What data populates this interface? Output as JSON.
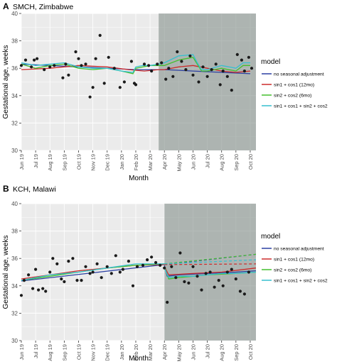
{
  "chart_data": [
    {
      "type": "scatter",
      "panel_letter": "A",
      "title": "SMCH, Zimbabwe",
      "xlabel": "Month",
      "ylabel": "Gestational age, weeks",
      "ylim": [
        30,
        40
      ],
      "yticks": [
        30,
        32,
        34,
        36,
        38,
        40
      ],
      "xlim": [
        0,
        16.4
      ],
      "xticks": [
        "Jun 19",
        "Jul 19",
        "Aug 19",
        "Sep 19",
        "Oct 19",
        "Nov 19",
        "Dec 19",
        "Jan 20",
        "Feb 20",
        "Mar 20",
        "Apr 20",
        "May 20",
        "Jun 20",
        "Jul 20",
        "Aug 20",
        "Sep 20",
        "Oct 20"
      ],
      "shaded_period": {
        "from": 9.6,
        "to": 16.4
      },
      "grid": true,
      "legend_position": "right",
      "points": {
        "x": [
          0.0,
          0.3,
          0.7,
          0.9,
          1.1,
          1.6,
          2.0,
          2.3,
          2.9,
          3.1,
          3.3,
          3.8,
          4.0,
          4.2,
          4.5,
          4.8,
          5.0,
          5.2,
          5.5,
          5.8,
          6.1,
          6.5,
          6.9,
          7.2,
          7.7,
          7.9,
          8.0,
          8.6,
          8.9,
          9.1,
          9.5,
          9.8,
          10.1,
          10.3,
          10.6,
          10.9,
          11.2,
          11.5,
          11.8,
          12.0,
          12.4,
          12.7,
          13.0,
          13.3,
          13.6,
          13.9,
          14.1,
          14.4,
          14.7,
          15.1,
          15.4,
          15.6,
          15.9,
          16.1
        ],
        "y": [
          36.2,
          36.6,
          36.1,
          36.6,
          36.7,
          35.9,
          36.1,
          36.2,
          35.3,
          36.3,
          35.5,
          37.2,
          36.7,
          36.2,
          36.3,
          33.9,
          34.6,
          36.7,
          38.4,
          34.9,
          36.8,
          36.0,
          34.6,
          35.0,
          36.5,
          34.9,
          34.8,
          36.3,
          36.2,
          35.8,
          36.3,
          36.4,
          35.2,
          36.0,
          35.4,
          37.2,
          36.5,
          35.9,
          36.9,
          35.5,
          35.0,
          36.1,
          35.4,
          35.9,
          36.3,
          34.8,
          35.8,
          35.4,
          34.4,
          37.0,
          36.6,
          35.8,
          36.8,
          36.0
        ]
      },
      "series": [
        {
          "name": "no seasonal adjustment",
          "color": "#2b3fa2",
          "x": [
            0,
            2,
            4,
            6,
            8,
            9.6,
            10,
            12,
            14,
            16
          ],
          "y": [
            36.3,
            36.2,
            36.1,
            36.0,
            35.9,
            35.9,
            35.9,
            35.8,
            35.7,
            35.6
          ]
        },
        {
          "name": "sin1 + cos1 (12mo)",
          "color": "#cc2a2a",
          "x": [
            0,
            2,
            4,
            6,
            7.5,
            8.6,
            9.6,
            10,
            11,
            12,
            13,
            14,
            15,
            16
          ],
          "y": [
            35.9,
            36.0,
            36.2,
            36.1,
            35.9,
            35.8,
            35.9,
            35.9,
            36.1,
            36.2,
            36.0,
            35.8,
            35.7,
            35.8
          ]
        },
        {
          "name": "sin2 + cos2 (6mo)",
          "color": "#44bf2e",
          "x": [
            0,
            1,
            2,
            3,
            4,
            5,
            6,
            7,
            7.8,
            8.0,
            8.5,
            9.0,
            9.6,
            10,
            11,
            12,
            12.3,
            12.6,
            13,
            14,
            15,
            15.5,
            16
          ],
          "y": [
            36.3,
            36.0,
            36.2,
            36.3,
            36.0,
            35.9,
            36.0,
            35.8,
            35.6,
            36.0,
            36.1,
            36.2,
            36.2,
            36.2,
            36.6,
            36.8,
            36.3,
            35.8,
            35.8,
            36.0,
            35.8,
            36.2,
            36.2
          ]
        },
        {
          "name": "sin1 + cos1 + sin2 + cos2",
          "color": "#35bfcf",
          "x": [
            0,
            1,
            2,
            3,
            4,
            5,
            6,
            7,
            7.8,
            8.0,
            8.5,
            9.0,
            9.6,
            10,
            11,
            12,
            12.3,
            12.6,
            13,
            14,
            15,
            15.5,
            16
          ],
          "y": [
            36.4,
            36.2,
            36.3,
            36.4,
            36.1,
            36.0,
            36.0,
            35.8,
            35.7,
            36.1,
            36.2,
            36.2,
            36.3,
            36.4,
            36.9,
            37.0,
            36.4,
            35.9,
            35.9,
            36.2,
            36.0,
            36.4,
            36.4
          ]
        }
      ]
    },
    {
      "type": "scatter",
      "panel_letter": "B",
      "title": "KCH, Malawi",
      "xlabel": "Month",
      "ylabel": "Gestational age, weeks",
      "ylim": [
        30,
        40
      ],
      "yticks": [
        30,
        32,
        34,
        36,
        38,
        40
      ],
      "xlim": [
        0,
        16.4
      ],
      "xticks": [
        "Jun 19",
        "Jul 19",
        "Aug 19",
        "Sep 19",
        "Oct 19",
        "Nov 19",
        "Dec 19",
        "Jan 20",
        "Feb 20",
        "Mar 20",
        "Apr 20",
        "May 20",
        "Jun 20",
        "Jul 20",
        "Aug 20",
        "Sep 20",
        "Oct 20"
      ],
      "shaded_period": {
        "from": 10.0,
        "to": 16.4
      },
      "grid": true,
      "legend_position": "right",
      "points": {
        "x": [
          0.0,
          0.2,
          0.5,
          0.8,
          1.0,
          1.2,
          1.5,
          1.7,
          2.0,
          2.2,
          2.5,
          2.8,
          3.0,
          3.3,
          3.6,
          3.9,
          4.2,
          4.5,
          4.8,
          5.0,
          5.3,
          5.6,
          6.0,
          6.3,
          6.6,
          6.9,
          7.1,
          7.5,
          7.8,
          8.1,
          8.5,
          8.8,
          9.1,
          9.4,
          9.7,
          10.0,
          10.2,
          10.5,
          10.8,
          11.1,
          11.4,
          11.7,
          12.0,
          12.3,
          12.6,
          12.9,
          13.2,
          13.5,
          13.8,
          14.1,
          14.4,
          14.7,
          15.0,
          15.3,
          15.6,
          15.9
        ],
        "y": [
          33.3,
          34.4,
          34.8,
          33.8,
          35.2,
          33.7,
          33.8,
          33.6,
          35.0,
          36.0,
          35.6,
          34.5,
          34.3,
          35.8,
          36.0,
          34.4,
          34.4,
          35.4,
          34.9,
          35.0,
          35.6,
          34.6,
          35.4,
          34.9,
          36.2,
          35.0,
          35.2,
          35.8,
          34.0,
          35.4,
          35.5,
          35.9,
          36.1,
          35.7,
          35.5,
          35.3,
          32.8,
          35.4,
          34.6,
          36.4,
          34.3,
          34.2,
          35.4,
          34.7,
          33.7,
          34.9,
          35.0,
          33.9,
          34.4,
          34.0,
          35.0,
          35.2,
          34.5,
          33.6,
          33.4,
          35.0
        ]
      },
      "series": [
        {
          "name": "no seasonal adjustment",
          "color": "#2b3fa2",
          "x": [
            0,
            10.0
          ],
          "y": [
            34.35,
            35.55
          ],
          "projection": {
            "x": [
              10.0,
              16.4
            ],
            "y": [
              35.55,
              36.3
            ]
          },
          "fitted_after": {
            "x": [
              10.0,
              10.2,
              11,
              12,
              13,
              14,
              15,
              16.4
            ],
            "y": [
              35.5,
              34.7,
              34.8,
              34.85,
              34.9,
              34.95,
              35.0,
              35.1
            ]
          }
        },
        {
          "name": "sin1 + cos1 (12mo)",
          "color": "#cc2a2a",
          "x": [
            0,
            2,
            4,
            6,
            8,
            10.0
          ],
          "y": [
            34.5,
            34.8,
            35.1,
            35.3,
            35.5,
            35.55
          ],
          "projection": {
            "x": [
              10.0,
              16.4
            ],
            "y": [
              35.55,
              35.6
            ]
          },
          "fitted_after": {
            "x": [
              10.0,
              10.3,
              12,
              14,
              16.4
            ],
            "y": [
              35.4,
              34.8,
              34.9,
              35.0,
              35.3
            ]
          }
        },
        {
          "name": "sin2 + cos2 (6mo)",
          "color": "#44bf2e",
          "x": [
            0,
            2,
            4,
            6,
            8,
            10.0
          ],
          "y": [
            34.4,
            34.7,
            35.0,
            35.3,
            35.5,
            35.6
          ],
          "projection": {
            "x": [
              10.0,
              16.4
            ],
            "y": [
              35.6,
              36.3
            ]
          },
          "fitted_after": {
            "x": [
              10.0,
              10.3,
              11,
              12,
              13,
              14,
              15,
              16.4
            ],
            "y": [
              35.4,
              34.5,
              34.6,
              34.7,
              34.8,
              34.85,
              34.9,
              35.0
            ]
          }
        },
        {
          "name": "sin1 + cos1 + sin2 + cos2",
          "color": "#35bfcf",
          "x": [
            0,
            2,
            4,
            6,
            8,
            10.0
          ],
          "y": [
            34.4,
            34.8,
            35.0,
            35.3,
            35.6,
            35.6
          ],
          "projection": {
            "x": [
              10.0,
              16.4
            ],
            "y": [
              35.6,
              35.9
            ]
          },
          "fitted_after": {
            "x": [
              10.0,
              10.3,
              11,
              12,
              13,
              14,
              15,
              16.4
            ],
            "y": [
              35.3,
              34.6,
              34.7,
              34.7,
              34.8,
              34.9,
              34.9,
              35.0
            ]
          }
        }
      ]
    }
  ],
  "legend": {
    "title": "model",
    "items": [
      {
        "label": "no seasonal adjustment",
        "color": "#2b3fa2"
      },
      {
        "label": "sin1 + cos1 (12mo)",
        "color": "#cc2a2a"
      },
      {
        "label": "sin2 + cos2 (6mo)",
        "color": "#44bf2e"
      },
      {
        "label": "sin1 + cos1 + sin2 + cos2",
        "color": "#35bfcf"
      }
    ]
  },
  "colors": {
    "panel_bg": "#ebebeb",
    "grid": "#ffffff",
    "shade": "#7f8c86",
    "point": "#1a1a1a"
  }
}
